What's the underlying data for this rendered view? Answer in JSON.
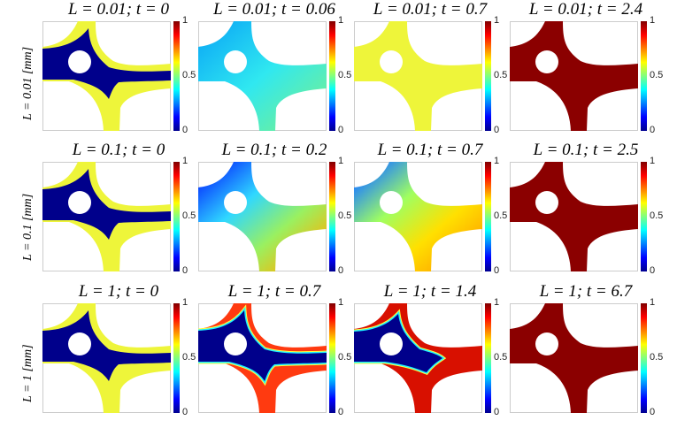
{
  "chart_data": {
    "type": "heatmap",
    "colormap": "jet",
    "colorbar_ticks": [
      "0",
      "0.5",
      "1"
    ],
    "clim": [
      0,
      1
    ],
    "row_labels": [
      "L = 0.01 [mm]",
      "L = 0.1 [mm]",
      "L = 1 [mm]"
    ],
    "panels": [
      {
        "title": "L = 0.01; t = 0",
        "style": "two-phase",
        "outer": "#eef53a",
        "inner": "#00008b"
      },
      {
        "title": "L = 0.01; t = 0.06",
        "style": "gradient",
        "stops": [
          "#10b0f5",
          "#30e8f0",
          "#70f098"
        ]
      },
      {
        "title": "L = 0.01; t = 0.7",
        "style": "uniform",
        "outer": "#eef53a"
      },
      {
        "title": "L = 0.01; t = 2.4",
        "style": "uniform",
        "outer": "#8b0000"
      },
      {
        "title": "L = 0.1; t = 0",
        "style": "two-phase",
        "outer": "#eef53a",
        "inner": "#00008b"
      },
      {
        "title": "L = 0.1; t = 0.2",
        "style": "gradient",
        "stops": [
          "#0a40ff",
          "#30d8ff",
          "#9af060",
          "#ffb000"
        ]
      },
      {
        "title": "L = 0.1; t = 0.7",
        "style": "gradient",
        "stops": [
          "#2080ff",
          "#a0ff60",
          "#ffe000",
          "#ffa000"
        ]
      },
      {
        "title": "L = 0.1; t = 2.5",
        "style": "uniform",
        "outer": "#8b0000"
      },
      {
        "title": "L = 1; t = 0",
        "style": "two-phase",
        "outer": "#eef53a",
        "inner": "#00008b"
      },
      {
        "title": "L = 1; t = 0.7",
        "style": "front",
        "outer": "#ff3a10",
        "inner": "#00008b"
      },
      {
        "title": "L = 1; t = 1.4",
        "style": "front-small",
        "outer": "#d81000",
        "inner": "#00008b"
      },
      {
        "title": "L = 1; t = 6.7",
        "style": "uniform",
        "outer": "#8b0000"
      }
    ]
  }
}
